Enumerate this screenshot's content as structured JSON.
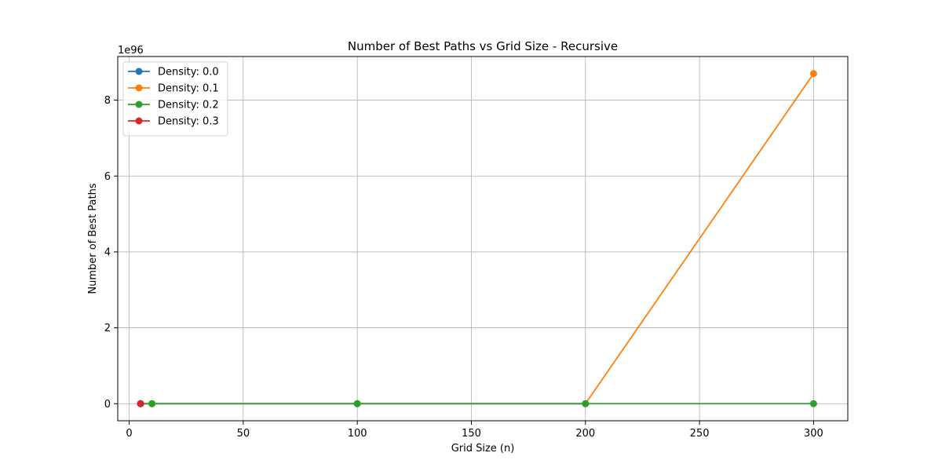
{
  "chart_data": {
    "type": "line",
    "title": "Number of Best Paths vs Grid Size - Recursive",
    "xlabel": "Grid Size (n)",
    "ylabel": "Number of Best Paths",
    "y_offset_label": "1e96",
    "xlim": [
      -5,
      315
    ],
    "ylim": [
      -0.45,
      9.15
    ],
    "y_scale_factor": "1e96",
    "xticks": [
      0,
      50,
      100,
      150,
      200,
      250,
      300
    ],
    "xtick_labels": [
      "0",
      "50",
      "100",
      "150",
      "200",
      "250",
      "300"
    ],
    "yticks": [
      0,
      2,
      4,
      6,
      8
    ],
    "ytick_labels": [
      "0",
      "2",
      "4",
      "6",
      "8"
    ],
    "grid": true,
    "legend_position": "top-left",
    "series": [
      {
        "name": "Density: 0.0",
        "color": "#1f77b4",
        "x": [
          5,
          10,
          100,
          200
        ],
        "y": [
          0,
          0,
          0,
          0
        ]
      },
      {
        "name": "Density: 0.1",
        "color": "#ff7f0e",
        "x": [
          5,
          10,
          100,
          200,
          300
        ],
        "y": [
          0,
          0,
          0,
          0,
          8.7
        ]
      },
      {
        "name": "Density: 0.2",
        "color": "#2ca02c",
        "x": [
          5,
          10,
          100,
          200,
          300
        ],
        "y": [
          0,
          0,
          0,
          0,
          0
        ]
      },
      {
        "name": "Density: 0.3",
        "color": "#d62728",
        "x": [
          5
        ],
        "y": [
          0
        ]
      }
    ]
  }
}
